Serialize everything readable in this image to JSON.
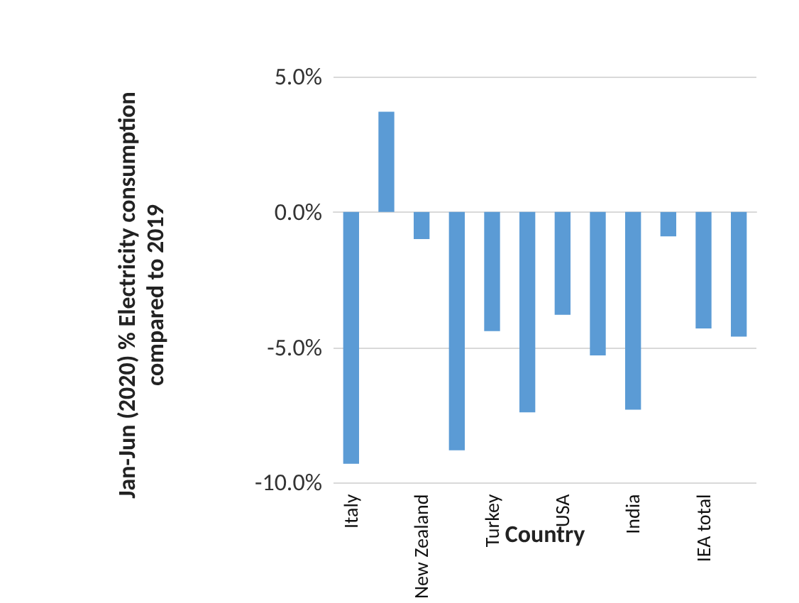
{
  "chart_data": {
    "type": "bar",
    "xlabel": "Country",
    "ylabel": "Jan-Jun (2020) % Electricity consumption compared to 2019",
    "categories": [
      "Italy",
      null,
      "New Zealand",
      null,
      "Turkey",
      null,
      "USA",
      null,
      "India",
      null,
      "IEA total",
      null
    ],
    "values": [
      -9.3,
      3.7,
      -1.0,
      -8.8,
      -4.4,
      -7.4,
      -3.8,
      -5.3,
      -7.3,
      -0.9,
      -4.3,
      -4.6
    ],
    "color": "#5b9bd5",
    "ylim": [
      -10,
      5
    ],
    "yticks": [
      {
        "value": -10,
        "label": "-10.0%"
      },
      {
        "value": -5,
        "label": "-5.0%"
      },
      {
        "value": 0,
        "label": "0.0%"
      },
      {
        "value": 5,
        "label": "5.0%"
      }
    ],
    "grid": "y"
  }
}
